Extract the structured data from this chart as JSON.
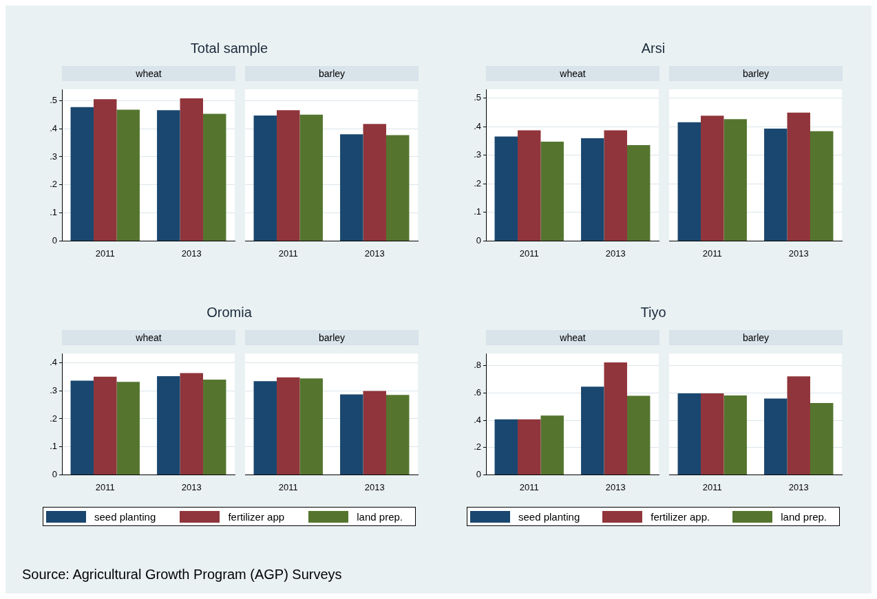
{
  "chart_data": [
    {
      "type": "bar",
      "title": "Total sample",
      "subtitle": "wheat",
      "categories": [
        "2011",
        "2013"
      ],
      "ylim": [
        0,
        0.54
      ],
      "yticks": [
        0,
        {
          "value": 0.1,
          "label": ".1"
        },
        {
          "value": 0.2,
          "label": ".2"
        },
        {
          "value": 0.3,
          "label": ".3"
        },
        {
          "value": 0.4,
          "label": ".4"
        },
        {
          "value": 0.5,
          "label": ".5"
        }
      ],
      "grid": "y",
      "annotations": [
        "Source: Agricultural Growth Program (AGP) Surveys"
      ],
      "series": [
        {
          "color": "#1a476f",
          "values": [
            0.477,
            0.466
          ]
        },
        {
          "color": "#90353b",
          "values": [
            0.505,
            0.508
          ]
        },
        {
          "color": "#55752f",
          "values": [
            0.468,
            0.453
          ]
        }
      ]
    },
    {
      "type": "bar",
      "subtitle": "barley",
      "categories": [
        "2011",
        "2013"
      ],
      "ylim": [
        0,
        0.54
      ],
      "yticks": [
        0,
        0.1,
        0.2,
        0.3,
        0.4,
        0.5
      ],
      "grid": "y",
      "tick_labels": "x",
      "series": [
        {
          "color": "#1a476f",
          "values": [
            0.447,
            0.38
          ]
        },
        {
          "color": "#90353b",
          "values": [
            0.466,
            0.417
          ]
        },
        {
          "color": "#55752f",
          "values": [
            0.45,
            0.377
          ]
        }
      ]
    },
    {
      "type": "bar",
      "title": "Arsi",
      "subtitle": "wheat",
      "categories": [
        "2011",
        "2013"
      ],
      "ylim": [
        0,
        0.53
      ],
      "yticks": [
        0,
        {
          "value": 0.1,
          "label": ".1"
        },
        {
          "value": 0.2,
          "label": ".2"
        },
        {
          "value": 0.3,
          "label": ".3"
        },
        {
          "value": 0.4,
          "label": ".4"
        },
        {
          "value": 0.5,
          "label": ".5"
        }
      ],
      "grid": "y",
      "series": [
        {
          "color": "#1a476f",
          "values": [
            0.365,
            0.359
          ]
        },
        {
          "color": "#90353b",
          "values": [
            0.387,
            0.387
          ]
        },
        {
          "color": "#55752f",
          "values": [
            0.347,
            0.335
          ]
        }
      ]
    },
    {
      "type": "bar",
      "subtitle": "barley",
      "categories": [
        "2011",
        "2013"
      ],
      "ylim": [
        0,
        0.53
      ],
      "yticks": [
        0,
        0.1,
        0.2,
        0.3,
        0.4,
        0.5
      ],
      "grid": "y",
      "tick_labels": "x",
      "series": [
        {
          "color": "#1a476f",
          "values": [
            0.415,
            0.393
          ]
        },
        {
          "color": "#90353b",
          "values": [
            0.438,
            0.449
          ]
        },
        {
          "color": "#55752f",
          "values": [
            0.426,
            0.384
          ]
        }
      ]
    },
    {
      "type": "bar",
      "title": "Oromia",
      "subtitle": "wheat",
      "categories": [
        "2011",
        "2013"
      ],
      "ylim": [
        0,
        0.433
      ],
      "yticks": [
        0,
        {
          "value": 0.1,
          "label": ".1"
        },
        {
          "value": 0.2,
          "label": ".2"
        },
        {
          "value": 0.3,
          "label": ".3"
        },
        {
          "value": 0.4,
          "label": ".4"
        }
      ],
      "grid": "y",
      "legend": "bottom",
      "series": [
        {
          "name": "seed planting",
          "color": "#1a476f",
          "values": [
            0.336,
            0.352
          ]
        },
        {
          "name": "fertilizer app",
          "color": "#90353b",
          "values": [
            0.35,
            0.363
          ]
        },
        {
          "name": "land prep.",
          "color": "#55752f",
          "values": [
            0.332,
            0.34
          ]
        }
      ]
    },
    {
      "type": "bar",
      "subtitle": "barley",
      "categories": [
        "2011",
        "2013"
      ],
      "ylim": [
        0,
        0.433
      ],
      "yticks": [
        0,
        0.1,
        0.2,
        0.3,
        0.4
      ],
      "grid": "y",
      "tick_labels": "x",
      "series": [
        {
          "color": "#1a476f",
          "values": [
            0.334,
            0.287
          ]
        },
        {
          "color": "#90353b",
          "values": [
            0.348,
            0.299
          ]
        },
        {
          "color": "#55752f",
          "values": [
            0.344,
            0.285
          ]
        }
      ]
    },
    {
      "type": "bar",
      "title": "Tiyo",
      "subtitle": "wheat",
      "categories": [
        "2011",
        "2013"
      ],
      "ylim": [
        0,
        0.89
      ],
      "yticks": [
        0,
        {
          "value": 0.2,
          "label": ".2"
        },
        {
          "value": 0.4,
          "label": ".4"
        },
        {
          "value": 0.6,
          "label": ".6"
        },
        {
          "value": 0.8,
          "label": ".8"
        }
      ],
      "grid": "y",
      "legend": "bottom",
      "series": [
        {
          "name": "seed planting",
          "color": "#1a476f",
          "values": [
            0.407,
            0.646
          ]
        },
        {
          "name": "fertilizer app.",
          "color": "#90353b",
          "values": [
            0.407,
            0.825
          ]
        },
        {
          "name": "land prep.",
          "color": "#55752f",
          "values": [
            0.435,
            0.58
          ]
        }
      ]
    },
    {
      "type": "bar",
      "subtitle": "barley",
      "categories": [
        "2011",
        "2013"
      ],
      "ylim": [
        0,
        0.89
      ],
      "yticks": [
        0,
        0.2,
        0.4,
        0.6,
        0.8
      ],
      "grid": "y",
      "tick_labels": "x",
      "series": [
        {
          "color": "#1a476f",
          "values": [
            0.598,
            0.559
          ]
        },
        {
          "color": "#90353b",
          "values": [
            0.598,
            0.722
          ]
        },
        {
          "color": "#55752f",
          "values": [
            0.582,
            0.527
          ]
        }
      ]
    }
  ]
}
